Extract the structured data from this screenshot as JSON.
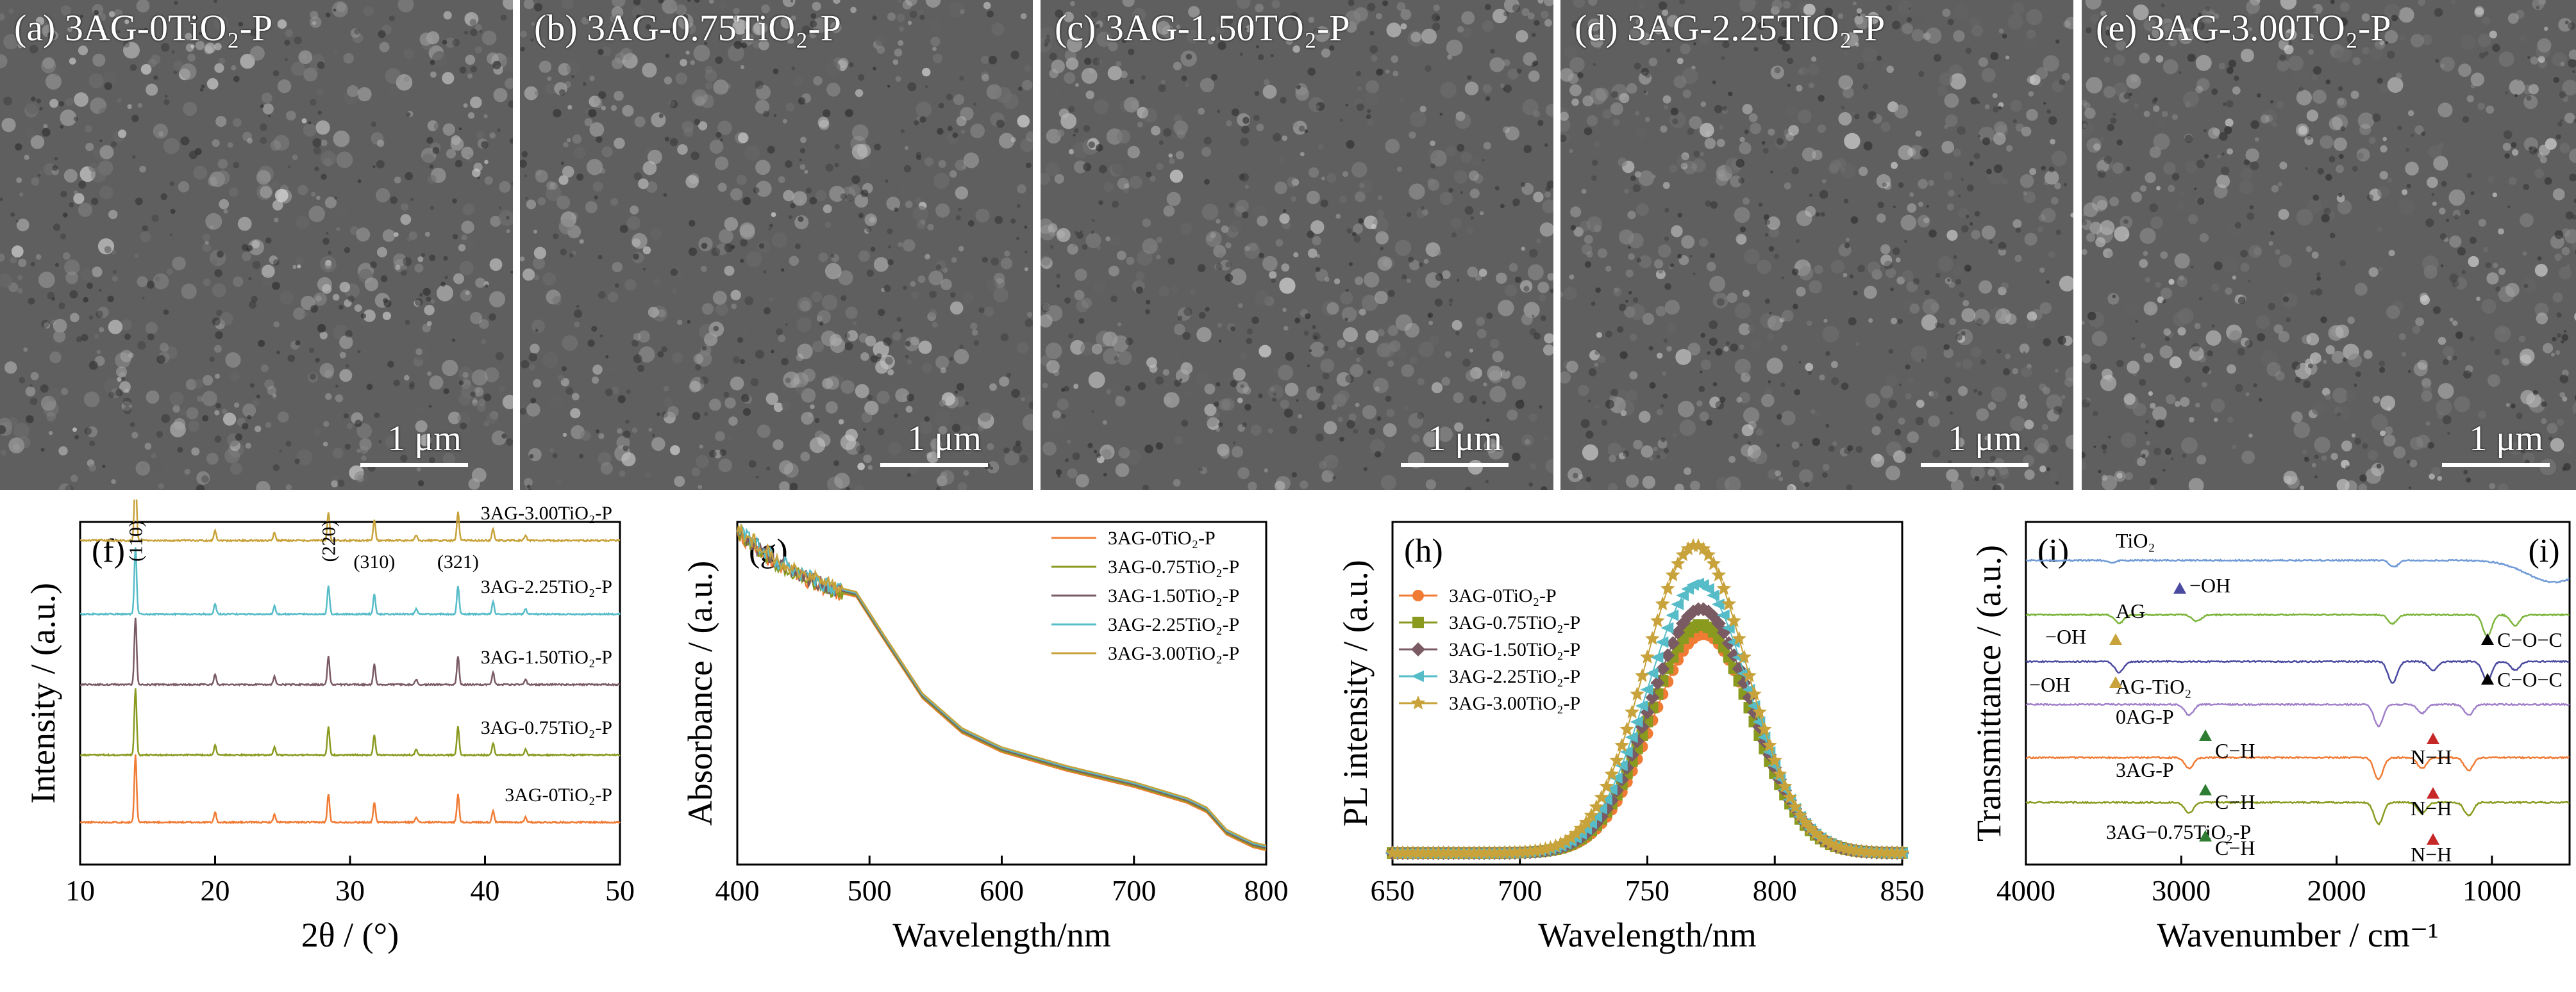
{
  "sem_panels": [
    {
      "label": "(a) 3AG-0TiO₂-P",
      "scale": "1 μm"
    },
    {
      "label": "(b) 3AG-0.75TiO₂-P",
      "scale": "1 μm"
    },
    {
      "label": "(c) 3AG-1.50TO₂-P",
      "scale": "1 μm"
    },
    {
      "label": "(d) 3AG-2.25TIO₂-P",
      "scale": "1 μm"
    },
    {
      "label": "(e) 3AG-3.00TO₂-P",
      "scale": "1 μm"
    }
  ],
  "colors": {
    "0": "#f07b35",
    "0.75": "#8a9a1f",
    "1.50": "#7a5a63",
    "2.25": "#56bcc8",
    "3.00": "#c8a23a",
    "tio2": "#6f9ad6",
    "ag": "#7cb53b",
    "agtio2": "#4a4aa0",
    "0agp": "#a080c8",
    "3agp": "#f07b35",
    "3ag075": "#8a9a1f"
  },
  "chart_data": [
    {
      "panel": "(f)",
      "type": "line",
      "xlabel": "2θ / (°)",
      "ylabel": "Intensity / (a.u.)",
      "xlim": [
        10,
        50
      ],
      "xticks": [
        10,
        20,
        30,
        40,
        50
      ],
      "series": [
        {
          "name": "3AG-0TiO₂-P",
          "color_key": "0"
        },
        {
          "name": "3AG-0.75TiO₂-P",
          "color_key": "0.75"
        },
        {
          "name": "3AG-1.50TiO₂-P",
          "color_key": "1.50"
        },
        {
          "name": "3AG-2.25TiO₂-P",
          "color_key": "2.25"
        },
        {
          "name": "3AG-3.00TiO₂-P",
          "color_key": "3.00"
        }
      ],
      "peaks": [
        {
          "x": 14.1,
          "h": 1.0
        },
        {
          "x": 20.0,
          "h": 0.15
        },
        {
          "x": 24.4,
          "h": 0.12
        },
        {
          "x": 28.4,
          "h": 0.42
        },
        {
          "x": 31.8,
          "h": 0.3
        },
        {
          "x": 34.9,
          "h": 0.08
        },
        {
          "x": 38.0,
          "h": 0.42
        },
        {
          "x": 40.6,
          "h": 0.18
        },
        {
          "x": 43.0,
          "h": 0.08
        }
      ],
      "annotations": [
        "(110)",
        "(220)",
        "(310)",
        "(321)"
      ]
    },
    {
      "panel": "(g)",
      "type": "line",
      "xlabel": "Wavelength/nm",
      "ylabel": "Absorbance / (a.u.)",
      "xlim": [
        400,
        800
      ],
      "xticks": [
        400,
        500,
        600,
        700,
        800
      ],
      "curve": [
        [
          400,
          1.0
        ],
        [
          430,
          0.9
        ],
        [
          470,
          0.82
        ],
        [
          490,
          0.8
        ],
        [
          510,
          0.67
        ],
        [
          540,
          0.48
        ],
        [
          570,
          0.37
        ],
        [
          600,
          0.31
        ],
        [
          650,
          0.25
        ],
        [
          700,
          0.2
        ],
        [
          740,
          0.15
        ],
        [
          755,
          0.12
        ],
        [
          770,
          0.05
        ],
        [
          790,
          0.01
        ],
        [
          800,
          0.0
        ]
      ],
      "series": [
        {
          "name": "3AG-0TiO₂-P",
          "color_key": "0"
        },
        {
          "name": "3AG-0.75TiO₂-P",
          "color_key": "0.75"
        },
        {
          "name": "3AG-1.50TiO₂-P",
          "color_key": "1.50"
        },
        {
          "name": "3AG-2.25TiO₂-P",
          "color_key": "2.25"
        },
        {
          "name": "3AG-3.00TiO₂-P",
          "color_key": "3.00"
        }
      ]
    },
    {
      "panel": "(h)",
      "type": "line",
      "xlabel": "Wavelength/nm",
      "ylabel": "PL intensity / (a.u.)",
      "xlim": [
        650,
        850
      ],
      "xticks": [
        650,
        700,
        750,
        800,
        850
      ],
      "series": [
        {
          "name": "3AG-0TiO₂-P",
          "color_key": "0",
          "center": 772,
          "peak": 0.69,
          "marker": "circle"
        },
        {
          "name": "3AG-0.75TiO₂-P",
          "color_key": "0.75",
          "center": 771,
          "peak": 0.72,
          "marker": "square"
        },
        {
          "name": "3AG-1.50TiO₂-P",
          "color_key": "1.50",
          "center": 771,
          "peak": 0.77,
          "marker": "diamond"
        },
        {
          "name": "3AG-2.25TiO₂-P",
          "color_key": "2.25",
          "center": 770,
          "peak": 0.85,
          "marker": "triangle-left"
        },
        {
          "name": "3AG-3.00TiO₂-P",
          "color_key": "3.00",
          "center": 769,
          "peak": 0.97,
          "marker": "star"
        }
      ]
    },
    {
      "panel": "(i)",
      "type": "line",
      "xlabel": "Wavenumber / cm⁻¹",
      "ylabel": "Transmittance / (a.u.)",
      "xlim": [
        4000,
        500
      ],
      "xticks": [
        4000,
        3000,
        2000,
        1000
      ],
      "series": [
        {
          "name": "TiO₂",
          "color_key": "tio2"
        },
        {
          "name": "AG",
          "color_key": "ag"
        },
        {
          "name": "AG-TiO₂",
          "color_key": "agtio2"
        },
        {
          "name": "0AG-P",
          "color_key": "0agp"
        },
        {
          "name": "3AG-P",
          "color_key": "3agp"
        },
        {
          "name": "3AG−0.75TiO₂-P",
          "color_key": "3ag075"
        }
      ],
      "annotations": [
        "−OH",
        "C−O−C",
        "C−H",
        "N−H"
      ]
    }
  ]
}
